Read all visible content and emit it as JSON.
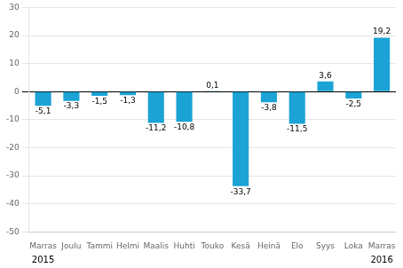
{
  "chart_data": {
    "type": "bar",
    "categories": [
      "Marras",
      "Joulu",
      "Tammi",
      "Helmi",
      "Maalis",
      "Huhti",
      "Touko",
      "Kesä",
      "Heinä",
      "Elo",
      "Syys",
      "Loka",
      "Marras"
    ],
    "values": [
      -5.1,
      -3.3,
      -1.5,
      -1.3,
      -11.2,
      -10.8,
      0.1,
      -33.7,
      -3.8,
      -11.5,
      3.6,
      -2.5,
      19.2
    ],
    "value_labels": [
      "-5,1",
      "-3,3",
      "-1,5",
      "-1,3",
      "-11,2",
      "-10,8",
      "0,1",
      "-33,7",
      "-3,8",
      "-11,5",
      "3,6",
      "-2,5",
      "19,2"
    ],
    "data_labels": true,
    "color": "#1ba3d5",
    "ylim": [
      -50,
      30
    ],
    "yticks": [
      -50,
      -40,
      -30,
      -20,
      -10,
      0,
      10,
      20,
      30
    ],
    "grid": true,
    "annotations": [
      {
        "text": "2015",
        "index": 0
      },
      {
        "text": "2016",
        "index": 12
      }
    ]
  }
}
